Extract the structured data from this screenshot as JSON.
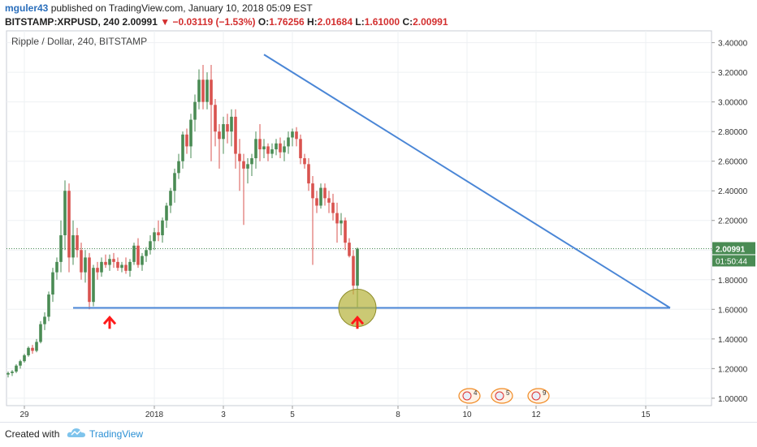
{
  "header": {
    "author": "mguler43",
    "published": " published on TradingView.com, January 10, 2018 05:09 EST",
    "symbol": "BITSTAMP:XRPUSD, 240",
    "last": "2.00991",
    "change": "−0.03119 (−1.53%)",
    "o_label": "O:",
    "o": "1.76256",
    "h_label": "H:",
    "h": "2.01684",
    "l_label": "L:",
    "l": "1.61000",
    "c_label": "C:",
    "c": "2.00991"
  },
  "colors": {
    "up": "#4a8b54",
    "down": "#d9534f",
    "trend": "#4a86d6",
    "marker": "#ff1a1a",
    "highlight": "#b5b239"
  },
  "chart_data": {
    "type": "candlestick",
    "title": "Ripple / Dollar, 240, BITSTAMP",
    "ylim": [
      0.95,
      3.48
    ],
    "y_ticks": [
      "1.00000",
      "1.20000",
      "1.40000",
      "1.60000",
      "1.80000",
      "2.00000",
      "2.20000",
      "2.40000",
      "2.60000",
      "2.80000",
      "3.00000",
      "3.20000",
      "3.40000"
    ],
    "y_tick_values": [
      1.0,
      1.2,
      1.4,
      1.6,
      1.8,
      2.0,
      2.2,
      2.4,
      2.6,
      2.8,
      3.0,
      3.2,
      3.4
    ],
    "x_ticks": [
      "29",
      "2018",
      "3",
      "5",
      "8",
      "10",
      "12",
      "15"
    ],
    "x_tick_bars": [
      4,
      36,
      53,
      70,
      96,
      113,
      130,
      157
    ],
    "last_price_label": "2.00991",
    "countdown_label": "01:50:44",
    "candles": [
      [
        1.16,
        1.18,
        1.14,
        1.17
      ],
      [
        1.17,
        1.19,
        1.15,
        1.18
      ],
      [
        1.18,
        1.23,
        1.17,
        1.22
      ],
      [
        1.22,
        1.26,
        1.2,
        1.25
      ],
      [
        1.25,
        1.3,
        1.24,
        1.29
      ],
      [
        1.29,
        1.35,
        1.28,
        1.34
      ],
      [
        1.34,
        1.36,
        1.3,
        1.32
      ],
      [
        1.32,
        1.4,
        1.31,
        1.38
      ],
      [
        1.38,
        1.52,
        1.37,
        1.5
      ],
      [
        1.5,
        1.58,
        1.46,
        1.55
      ],
      [
        1.55,
        1.72,
        1.52,
        1.7
      ],
      [
        1.7,
        1.88,
        1.65,
        1.85
      ],
      [
        1.85,
        1.95,
        1.8,
        1.92
      ],
      [
        1.92,
        2.2,
        1.85,
        2.1
      ],
      [
        2.1,
        2.47,
        2.0,
        2.4
      ],
      [
        2.4,
        2.45,
        1.85,
        1.95
      ],
      [
        1.95,
        2.2,
        1.9,
        2.1
      ],
      [
        2.1,
        2.15,
        1.95,
        2.0
      ],
      [
        2.0,
        2.05,
        1.8,
        1.85
      ],
      [
        1.85,
        2.0,
        1.78,
        1.95
      ],
      [
        1.95,
        1.98,
        1.6,
        1.65
      ],
      [
        1.65,
        1.9,
        1.62,
        1.88
      ],
      [
        1.88,
        1.92,
        1.8,
        1.85
      ],
      [
        1.85,
        1.95,
        1.82,
        1.92
      ],
      [
        1.92,
        1.97,
        1.88,
        1.9
      ],
      [
        1.9,
        1.97,
        1.86,
        1.94
      ],
      [
        1.94,
        1.98,
        1.88,
        1.92
      ],
      [
        1.92,
        1.95,
        1.86,
        1.88
      ],
      [
        1.88,
        1.92,
        1.85,
        1.9
      ],
      [
        1.9,
        1.95,
        1.84,
        1.86
      ],
      [
        1.86,
        1.94,
        1.82,
        1.92
      ],
      [
        1.92,
        2.05,
        1.9,
        2.03
      ],
      [
        2.03,
        2.08,
        1.88,
        1.9
      ],
      [
        1.9,
        1.98,
        1.86,
        1.96
      ],
      [
        1.96,
        2.02,
        1.92,
        2.0
      ],
      [
        2.0,
        2.1,
        1.97,
        2.06
      ],
      [
        2.06,
        2.15,
        2.0,
        2.12
      ],
      [
        2.12,
        2.2,
        2.06,
        2.1
      ],
      [
        2.1,
        2.22,
        2.05,
        2.2
      ],
      [
        2.2,
        2.32,
        2.15,
        2.3
      ],
      [
        2.3,
        2.42,
        2.25,
        2.4
      ],
      [
        2.4,
        2.55,
        2.32,
        2.52
      ],
      [
        2.52,
        2.65,
        2.48,
        2.6
      ],
      [
        2.6,
        2.8,
        2.55,
        2.78
      ],
      [
        2.78,
        2.82,
        2.65,
        2.7
      ],
      [
        2.7,
        2.92,
        2.62,
        2.88
      ],
      [
        2.88,
        3.05,
        2.8,
        3.0
      ],
      [
        3.0,
        3.22,
        2.95,
        3.15
      ],
      [
        3.15,
        3.25,
        2.95,
        3.0
      ],
      [
        3.0,
        3.2,
        2.95,
        3.15
      ],
      [
        3.15,
        3.25,
        2.6,
        2.98
      ],
      [
        2.98,
        3.02,
        2.7,
        2.8
      ],
      [
        2.8,
        2.85,
        2.55,
        2.75
      ],
      [
        2.75,
        2.9,
        2.65,
        2.85
      ],
      [
        2.85,
        2.92,
        2.72,
        2.8
      ],
      [
        2.8,
        2.95,
        2.7,
        2.9
      ],
      [
        2.9,
        2.95,
        2.55,
        2.65
      ],
      [
        2.65,
        2.75,
        2.4,
        2.6
      ],
      [
        2.6,
        2.65,
        2.17,
        2.55
      ],
      [
        2.55,
        2.62,
        2.45,
        2.58
      ],
      [
        2.58,
        2.65,
        2.5,
        2.62
      ],
      [
        2.62,
        2.8,
        2.55,
        2.75
      ],
      [
        2.75,
        2.85,
        2.6,
        2.68
      ],
      [
        2.68,
        2.75,
        2.62,
        2.7
      ],
      [
        2.7,
        2.72,
        2.6,
        2.65
      ],
      [
        2.65,
        2.72,
        2.62,
        2.68
      ],
      [
        2.68,
        2.75,
        2.64,
        2.72
      ],
      [
        2.72,
        2.76,
        2.62,
        2.66
      ],
      [
        2.66,
        2.74,
        2.6,
        2.7
      ],
      [
        2.7,
        2.8,
        2.65,
        2.76
      ],
      [
        2.76,
        2.82,
        2.7,
        2.8
      ],
      [
        2.8,
        2.83,
        2.7,
        2.75
      ],
      [
        2.75,
        2.78,
        2.58,
        2.62
      ],
      [
        2.62,
        2.65,
        2.55,
        2.58
      ],
      [
        2.58,
        2.62,
        2.4,
        2.45
      ],
      [
        2.45,
        2.5,
        1.9,
        2.35
      ],
      [
        2.35,
        2.4,
        2.25,
        2.3
      ],
      [
        2.3,
        2.45,
        2.28,
        2.42
      ],
      [
        2.42,
        2.45,
        2.3,
        2.35
      ],
      [
        2.35,
        2.4,
        2.25,
        2.32
      ],
      [
        2.32,
        2.38,
        2.2,
        2.25
      ],
      [
        2.25,
        2.32,
        2.05,
        2.18
      ],
      [
        2.18,
        2.25,
        2.1,
        2.2
      ],
      [
        2.2,
        2.22,
        2.0,
        2.05
      ],
      [
        2.05,
        2.08,
        1.95,
        1.96
      ],
      [
        1.96,
        2.0,
        1.7,
        1.76
      ],
      [
        1.76,
        2.01684,
        1.61,
        2.00991
      ]
    ],
    "support_line": {
      "from_bar": 16,
      "to_bar": 163,
      "price": 1.61
    },
    "resistance_line": {
      "from_bar": 63,
      "from_price": 3.32,
      "to_bar": 163,
      "to_price": 1.61
    },
    "events": [
      {
        "bar": 113,
        "label": "4"
      },
      {
        "bar": 121,
        "label": "5"
      },
      {
        "bar": 130,
        "label": "9"
      }
    ]
  },
  "footer": {
    "created": "Created with",
    "brand": "TradingView"
  }
}
